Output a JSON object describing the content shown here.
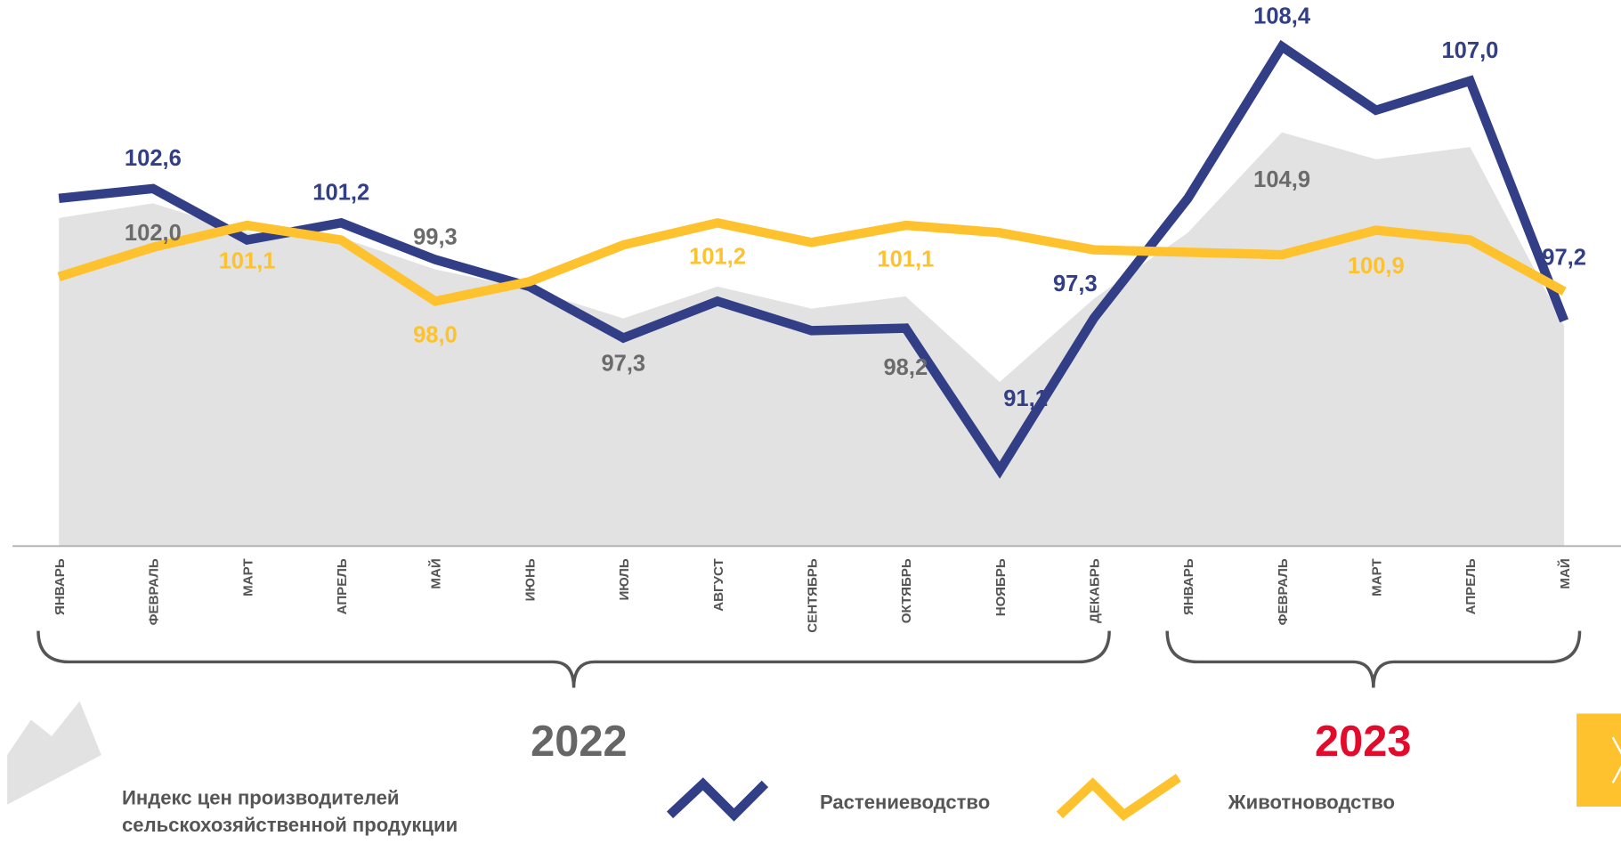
{
  "chart_data": {
    "type": "line",
    "categories": [
      "ЯНВАРЬ",
      "ФЕВРАЛЬ",
      "МАРТ",
      "АПРЕЛЬ",
      "МАЙ",
      "ИЮНЬ",
      "ИЮЛЬ",
      "АВГУСТ",
      "СЕНТЯБРЬ",
      "ОКТЯБРЬ",
      "НОЯБРЬ",
      "ДЕКАБРЬ",
      "ЯНВАРЬ",
      "ФЕВРАЛЬ",
      "МАРТ",
      "АПРЕЛЬ",
      "МАЙ"
    ],
    "groups": [
      {
        "label": "2022",
        "color": "#666666",
        "from": 0,
        "to": 11
      },
      {
        "label": "2023",
        "color": "#e30b2c",
        "from": 12,
        "to": 16
      }
    ],
    "ylim": [
      88,
      110
    ],
    "series": [
      {
        "name": "Индекс цен производителей сельскохозяйственной продукции",
        "kind": "area",
        "color": "#e2e2e2",
        "label_color": "#6b6b6b",
        "values": [
          101.4,
          102.0,
          100.8,
          100.6,
          99.3,
          98.5,
          97.3,
          98.6,
          97.7,
          98.2,
          94.7,
          98.1,
          100.8,
          104.9,
          103.8,
          104.3,
          97.0
        ],
        "value_labels": [
          null,
          "102,0",
          null,
          null,
          "99,3",
          null,
          "97,3",
          null,
          null,
          "98,2",
          null,
          null,
          null,
          "104,9",
          null,
          null,
          null
        ]
      },
      {
        "name": "Растениеводство",
        "kind": "line",
        "color": "#323e85",
        "label_color": "#323e85",
        "values": [
          102.2,
          102.6,
          100.5,
          101.2,
          99.7,
          98.6,
          96.5,
          98.0,
          96.8,
          96.9,
          91.1,
          97.3,
          102.2,
          108.4,
          105.8,
          107.0,
          97.2
        ],
        "value_labels": [
          null,
          "102,6",
          null,
          "101,2",
          null,
          null,
          null,
          null,
          null,
          null,
          "91,1",
          "97,3",
          null,
          "108,4",
          null,
          "107,0",
          "97,2"
        ]
      },
      {
        "name": "Животноводство",
        "kind": "line",
        "color": "#fdc22e",
        "label_color": "#fdc22e",
        "values": [
          99.0,
          100.2,
          101.1,
          100.5,
          98.0,
          98.8,
          100.3,
          101.2,
          100.4,
          101.1,
          100.8,
          100.1,
          100.0,
          99.9,
          100.9,
          100.5,
          98.4
        ],
        "value_labels": [
          null,
          null,
          "101,1",
          null,
          "98,0",
          null,
          null,
          "101,2",
          null,
          "101,1",
          null,
          null,
          null,
          null,
          "100,9",
          null,
          null
        ]
      }
    ]
  }
}
